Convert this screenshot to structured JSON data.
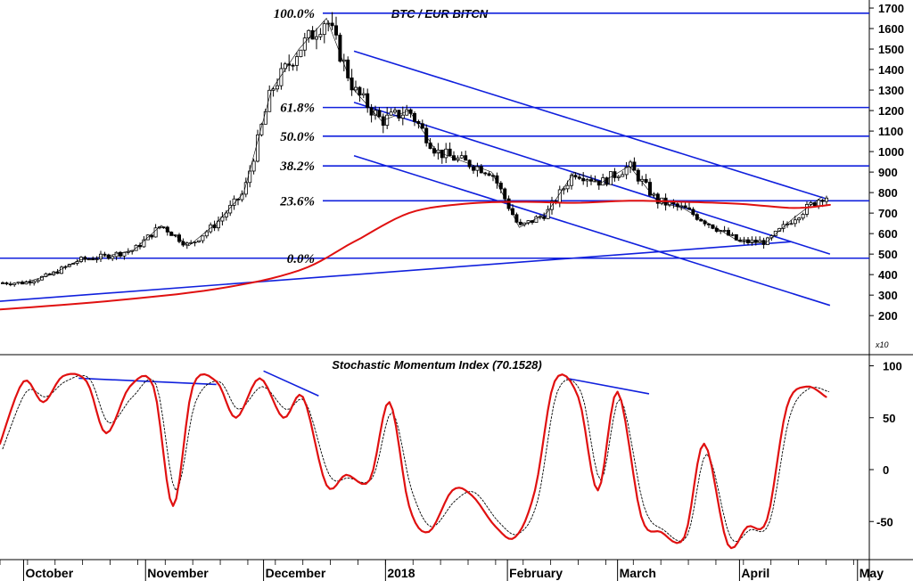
{
  "chart_data": [
    {
      "type": "candlestick",
      "title": "BTC / EUR BITCN",
      "y_multiplier_label": "x10",
      "ylim": [
        140,
        1760
      ],
      "y_ticks": [
        "200",
        "300",
        "400",
        "500",
        "600",
        "700",
        "800",
        "900",
        "1000",
        "1100",
        "1200",
        "1300",
        "1400",
        "1500",
        "1600",
        "1700"
      ],
      "x_ticks": [
        "October",
        "November",
        "December",
        "2018",
        "February",
        "March",
        "April",
        "May"
      ],
      "x_range": [
        "2017-09-25",
        "2018-05-04"
      ],
      "fibonacci_levels": [
        {
          "label": "100.0%",
          "value": 1675
        },
        {
          "label": "61.8%",
          "value": 1215
        },
        {
          "label": "50.0%",
          "value": 1075
        },
        {
          "label": "38.2%",
          "value": 930
        },
        {
          "label": "23.6%",
          "value": 760
        },
        {
          "label": "0.0%",
          "value": 480
        }
      ],
      "series": [
        {
          "name": "Close",
          "dates": [
            "2017-10-01",
            "2017-10-08",
            "2017-10-15",
            "2017-10-22",
            "2017-10-29",
            "2017-11-05",
            "2017-11-12",
            "2017-11-19",
            "2017-11-26",
            "2017-12-03",
            "2017-12-10",
            "2017-12-17",
            "2017-12-24",
            "2017-12-31",
            "2018-01-07",
            "2018-01-14",
            "2018-01-21",
            "2018-01-28",
            "2018-02-04",
            "2018-02-11",
            "2018-02-18",
            "2018-02-25",
            "2018-03-04",
            "2018-03-11",
            "2018-03-18",
            "2018-03-25",
            "2018-04-01",
            "2018-04-08",
            "2018-04-15",
            "2018-04-22"
          ],
          "values": [
            360,
            400,
            470,
            490,
            520,
            640,
            540,
            650,
            800,
            1300,
            1500,
            1650,
            1300,
            1150,
            1200,
            1000,
            950,
            900,
            630,
            700,
            900,
            850,
            930,
            760,
            720,
            640,
            560,
            560,
            680,
            780
          ]
        },
        {
          "name": "Moving average",
          "dates": [
            "2017-09-25",
            "2017-10-22",
            "2017-11-19",
            "2017-12-10",
            "2017-12-24",
            "2018-01-07",
            "2018-01-21",
            "2018-02-04",
            "2018-02-18",
            "2018-03-04",
            "2018-03-18",
            "2018-04-01",
            "2018-04-15",
            "2018-04-24"
          ],
          "values": [
            230,
            270,
            330,
            420,
            560,
            700,
            745,
            755,
            750,
            760,
            755,
            745,
            725,
            740
          ]
        }
      ],
      "trendlines": [
        {
          "from": [
            "2017-12-24",
            1490
          ],
          "to": [
            "2018-04-23",
            770
          ]
        },
        {
          "from": [
            "2017-12-24",
            1240
          ],
          "to": [
            "2018-04-24",
            500
          ]
        },
        {
          "from": [
            "2017-12-24",
            980
          ],
          "to": [
            "2018-04-24",
            250
          ]
        },
        {
          "from": [
            "2017-09-25",
            270
          ],
          "to": [
            "2018-04-14",
            560
          ]
        }
      ]
    },
    {
      "type": "line",
      "title": "Stochastic Momentum Index (70.1528)",
      "ylim": [
        -88,
        105
      ],
      "y_ticks": [
        "100",
        "50",
        "0",
        "-50"
      ],
      "series": [
        {
          "name": "SMI",
          "dates": [
            "2017-09-25",
            "2017-10-01",
            "2017-10-06",
            "2017-10-11",
            "2017-10-17",
            "2017-10-22",
            "2017-10-28",
            "2017-11-03",
            "2017-11-08",
            "2017-11-13",
            "2017-11-19",
            "2017-11-24",
            "2017-11-30",
            "2017-12-06",
            "2017-12-11",
            "2017-12-17",
            "2017-12-22",
            "2017-12-28",
            "2018-01-02",
            "2018-01-07",
            "2018-01-12",
            "2018-01-18",
            "2018-01-23",
            "2018-01-29",
            "2018-02-03",
            "2018-02-08",
            "2018-02-13",
            "2018-02-19",
            "2018-02-24",
            "2018-03-01",
            "2018-03-07",
            "2018-03-12",
            "2018-03-18",
            "2018-03-23",
            "2018-03-29",
            "2018-04-03",
            "2018-04-08",
            "2018-04-13",
            "2018-04-18",
            "2018-04-23"
          ],
          "values": [
            25,
            85,
            65,
            90,
            85,
            35,
            80,
            80,
            -35,
            80,
            85,
            50,
            88,
            50,
            70,
            -15,
            -5,
            -10,
            65,
            -35,
            -60,
            -20,
            -25,
            -55,
            -65,
            -20,
            85,
            70,
            -20,
            75,
            -45,
            -60,
            -65,
            25,
            -72,
            -55,
            -48,
            60,
            80,
            70
          ]
        },
        {
          "name": "Signal",
          "dates": [
            "2017-09-25",
            "2017-10-01",
            "2017-10-06",
            "2017-10-11",
            "2017-10-17",
            "2017-10-22",
            "2017-10-28",
            "2017-11-03",
            "2017-11-08",
            "2017-11-13",
            "2017-11-19",
            "2017-11-24",
            "2017-11-30",
            "2017-12-06",
            "2017-12-11",
            "2017-12-17",
            "2017-12-22",
            "2017-12-28",
            "2018-01-02",
            "2018-01-07",
            "2018-01-12",
            "2018-01-18",
            "2018-01-23",
            "2018-01-29",
            "2018-02-03",
            "2018-02-08",
            "2018-02-13",
            "2018-02-19",
            "2018-02-24",
            "2018-03-01",
            "2018-03-07",
            "2018-03-12",
            "2018-03-18",
            "2018-03-23",
            "2018-03-29",
            "2018-04-03",
            "2018-04-08",
            "2018-04-13",
            "2018-04-18",
            "2018-04-23"
          ],
          "values": [
            20,
            75,
            70,
            85,
            88,
            45,
            70,
            82,
            -20,
            65,
            85,
            58,
            80,
            58,
            65,
            -5,
            -8,
            -8,
            55,
            -20,
            -55,
            -30,
            -22,
            -50,
            -62,
            -30,
            75,
            75,
            -10,
            68,
            -35,
            -58,
            -64,
            15,
            -65,
            -58,
            -50,
            50,
            78,
            75
          ]
        }
      ],
      "trendlines": [
        {
          "from": [
            "2017-10-15",
            88
          ],
          "to": [
            "2017-11-19",
            82
          ]
        },
        {
          "from": [
            "2017-12-01",
            95
          ],
          "to": [
            "2017-12-15",
            71
          ]
        },
        {
          "from": [
            "2018-02-16",
            88
          ],
          "to": [
            "2018-03-09",
            73
          ]
        }
      ]
    }
  ],
  "colors": {
    "price_line": "#000000",
    "moving_average": "#e01010",
    "trendline": "#1020dd",
    "smi": "#e01010",
    "signal": "#000000"
  }
}
